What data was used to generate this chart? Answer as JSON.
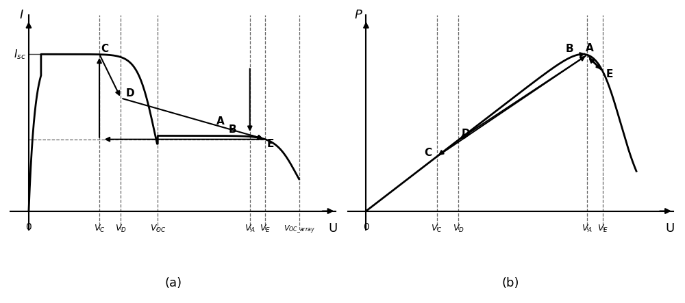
{
  "fig_width": 10.0,
  "fig_height": 4.43,
  "dpi": 100,
  "background_color": "#ffffff",
  "subplot_a": {
    "xlabel": "U",
    "ylabel": "I",
    "label_isc": "$I_{sc}$",
    "label_vc": "$V_C$",
    "label_vd": "$V_D$",
    "label_voc": "$V_{OC}$",
    "label_va": "$V_A$",
    "label_ve": "$V_E$",
    "label_voc_array": "$V_{OC\\_array}$",
    "caption": "(a)",
    "Isc": 1.0,
    "Vc": 0.23,
    "Vd": 0.3,
    "Voc": 0.42,
    "Va": 0.72,
    "Ve": 0.77,
    "Voc_array": 0.88
  },
  "subplot_b": {
    "xlabel": "U",
    "ylabel": "P",
    "label_vc": "$V_C$",
    "label_vd": "$V_D$",
    "label_va": "$V_A$",
    "label_ve": "$V_E$",
    "caption": "(b)"
  }
}
